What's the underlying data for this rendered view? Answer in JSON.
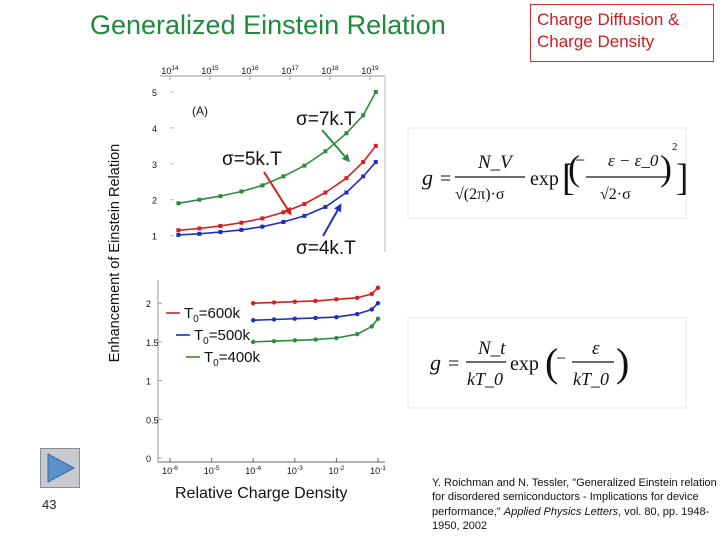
{
  "slide": {
    "title": "Generalized Einstein Relation",
    "box_text": "Charge Diffusion & Charge Density",
    "slide_number": "43",
    "citation_prefix": "Y. Roichman and N. Tessler, \"Generalized Einstein relation for disordered semiconductors - Implications for device performance,\" ",
    "citation_journal": "Applied Physics Letters",
    "citation_suffix": ", vol. 80, pp. 1948-1950, 2002"
  },
  "chart_data": [
    {
      "type": "line",
      "panel_label": "(A)",
      "xscale": "log",
      "top_axis_ticks": [
        "10^14",
        "10^15",
        "10^16",
        "10^17",
        "10^18",
        "10^19"
      ],
      "ylabel": "Enhancement of Einstein Relation",
      "yticks": [
        "1",
        "2",
        "3",
        "4",
        "5"
      ],
      "ylim": [
        0.6,
        5
      ],
      "xlim": [
        0,
        5
      ],
      "series": [
        {
          "color": "#2e8b3c",
          "points": [
            [
              0.2,
              1.9
            ],
            [
              0.7,
              2.0
            ],
            [
              1.2,
              2.1
            ],
            [
              1.7,
              2.23
            ],
            [
              2.2,
              2.4
            ],
            [
              2.7,
              2.65
            ],
            [
              3.2,
              2.95
            ],
            [
              3.7,
              3.35
            ],
            [
              4.2,
              3.85
            ],
            [
              4.6,
              4.35
            ],
            [
              4.9,
              5.0
            ]
          ]
        },
        {
          "color": "#d42020",
          "points": [
            [
              0.2,
              1.15
            ],
            [
              0.7,
              1.2
            ],
            [
              1.2,
              1.27
            ],
            [
              1.7,
              1.36
            ],
            [
              2.2,
              1.48
            ],
            [
              2.7,
              1.65
            ],
            [
              3.2,
              1.88
            ],
            [
              3.7,
              2.2
            ],
            [
              4.2,
              2.6
            ],
            [
              4.6,
              3.05
            ],
            [
              4.9,
              3.5
            ]
          ]
        },
        {
          "color": "#1e2fbf",
          "points": [
            [
              0.2,
              1.02
            ],
            [
              0.7,
              1.05
            ],
            [
              1.2,
              1.1
            ],
            [
              1.7,
              1.16
            ],
            [
              2.2,
              1.25
            ],
            [
              2.7,
              1.38
            ],
            [
              3.2,
              1.55
            ],
            [
              3.7,
              1.8
            ],
            [
              4.2,
              2.2
            ],
            [
              4.6,
              2.65
            ],
            [
              4.9,
              3.05
            ]
          ]
        }
      ],
      "annotations": [
        "σ=7k.T",
        "σ=5k.T",
        "σ=4k.T"
      ]
    },
    {
      "type": "line",
      "xscale": "log",
      "xlabel": "Relative Charge Density",
      "xticks": [
        "10^-6",
        "10^-5",
        "10^-4",
        "10^-3",
        "10^-2",
        "10^-1"
      ],
      "yticks": [
        "0",
        "0.5",
        "1",
        "1.5",
        "2"
      ],
      "ylim": [
        0,
        2.3
      ],
      "xlim": [
        -6,
        -1
      ],
      "legend": [
        {
          "label": "T0=600k",
          "color": "#d42020"
        },
        {
          "label": "T0=500k",
          "color": "#1e2fbf"
        },
        {
          "label": "T0=400k",
          "color": "#2e8b3c"
        }
      ],
      "series": [
        {
          "color": "#d42020",
          "points": [
            [
              -4.0,
              2.0
            ],
            [
              -3.5,
              2.01
            ],
            [
              -3.0,
              2.02
            ],
            [
              -2.5,
              2.03
            ],
            [
              -2.0,
              2.05
            ],
            [
              -1.5,
              2.07
            ],
            [
              -1.15,
              2.12
            ],
            [
              -1.0,
              2.2
            ]
          ]
        },
        {
          "color": "#1e2fbf",
          "points": [
            [
              -4.0,
              1.78
            ],
            [
              -3.5,
              1.79
            ],
            [
              -3.0,
              1.8
            ],
            [
              -2.5,
              1.81
            ],
            [
              -2.0,
              1.82
            ],
            [
              -1.5,
              1.86
            ],
            [
              -1.15,
              1.92
            ],
            [
              -1.0,
              2.0
            ]
          ]
        },
        {
          "color": "#2e8b3c",
          "points": [
            [
              -4.0,
              1.5
            ],
            [
              -3.5,
              1.51
            ],
            [
              -3.0,
              1.52
            ],
            [
              -2.5,
              1.53
            ],
            [
              -2.0,
              1.55
            ],
            [
              -1.5,
              1.6
            ],
            [
              -1.15,
              1.7
            ],
            [
              -1.0,
              1.8
            ]
          ]
        }
      ]
    }
  ],
  "equations": {
    "eq1": {
      "lhs": "g",
      "numerator": "N_V",
      "denominator": "√(2π)·σ",
      "func": "exp",
      "inner_num": "ε − ε_0",
      "inner_den": "√2·σ",
      "exponent": "2"
    },
    "eq2": {
      "lhs": "g",
      "numerator": "N_t",
      "denominator": "kT_0",
      "func": "exp",
      "inner_num": "ε",
      "inner_den": "kT_0"
    }
  }
}
